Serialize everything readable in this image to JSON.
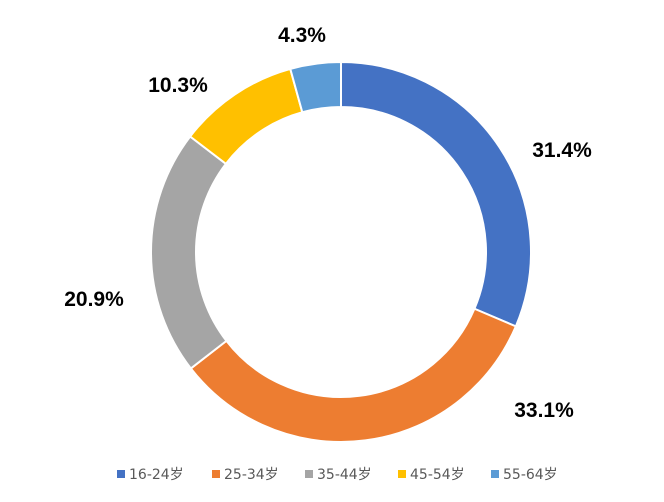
{
  "chart_data": {
    "type": "donut",
    "title": "",
    "categories": [
      "16-24岁",
      "25-34岁",
      "35-44岁",
      "45-54岁",
      "55-64岁"
    ],
    "values": [
      31.4,
      33.1,
      20.9,
      10.3,
      4.3
    ],
    "labels": [
      "31.4%",
      "33.1%",
      "20.9%",
      "10.3%",
      "4.3%"
    ],
    "colors": [
      "#4472c4",
      "#ed7d31",
      "#a5a5a5",
      "#ffc000",
      "#5b9bd5"
    ],
    "legend_position": "bottom",
    "start_angle": "12 o'clock",
    "direction": "clockwise"
  }
}
